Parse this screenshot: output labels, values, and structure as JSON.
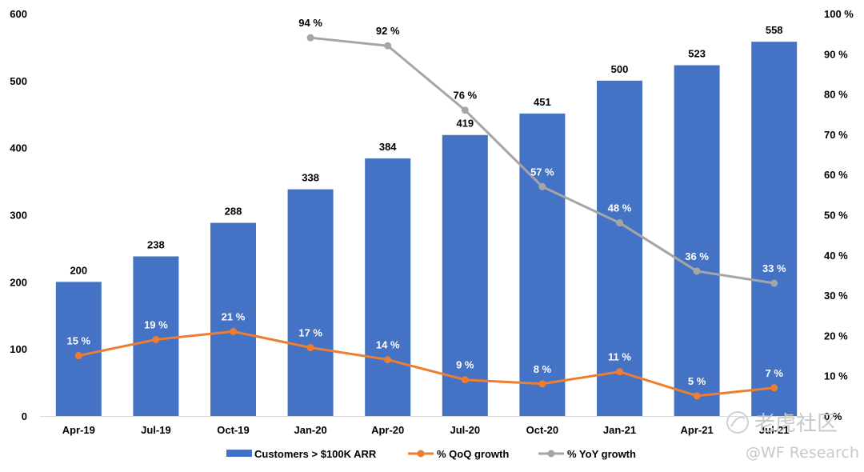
{
  "chart_data": {
    "type": "bar",
    "categories": [
      "Apr-19",
      "Jul-19",
      "Oct-19",
      "Jan-20",
      "Apr-20",
      "Jul-20",
      "Oct-20",
      "Jan-21",
      "Apr-21",
      "Jul-21"
    ],
    "series": [
      {
        "name": "Customers > $100K ARR",
        "type": "bar",
        "axis": "left",
        "color": "#4472C4",
        "values": [
          200,
          238,
          288,
          338,
          384,
          419,
          451,
          500,
          523,
          558
        ],
        "labels": [
          "200",
          "238",
          "288",
          "338",
          "384",
          "419",
          "451",
          "500",
          "523",
          "558"
        ]
      },
      {
        "name": "% QoQ growth",
        "type": "line",
        "axis": "right",
        "color": "#ED7D31",
        "values": [
          15,
          19,
          21,
          17,
          14,
          9,
          8,
          11,
          5,
          7
        ],
        "labels": [
          "15 %",
          "19 %",
          "21 %",
          "17 %",
          "14 %",
          "9 %",
          "8 %",
          "11 %",
          "5 %",
          "7 %"
        ]
      },
      {
        "name": "% YoY growth",
        "type": "line",
        "axis": "right",
        "color": "#A5A5A5",
        "values": [
          null,
          null,
          null,
          94,
          92,
          76,
          57,
          48,
          36,
          33
        ],
        "labels": [
          "",
          "",
          "",
          "94 %",
          "92 %",
          "76 %",
          "57 %",
          "48 %",
          "36 %",
          "33 %"
        ]
      }
    ],
    "ylim": [
      0,
      600
    ],
    "yticks": [
      "0",
      "100",
      "200",
      "300",
      "400",
      "500",
      "600"
    ],
    "y2lim": [
      0,
      100
    ],
    "y2ticks": [
      "0 %",
      "10 %",
      "20 %",
      "30 %",
      "40 %",
      "50 %",
      "60 %",
      "70 %",
      "80 %",
      "90 %",
      "100 %"
    ],
    "grid": false,
    "legend": "bottom"
  },
  "watermark": {
    "logo_text": "老虎社区",
    "sub_text": "@WF Research"
  }
}
